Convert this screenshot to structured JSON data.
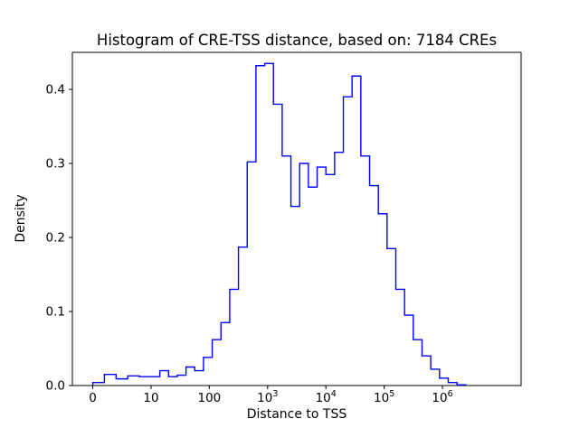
{
  "figure": {
    "background": "#ffffff"
  },
  "chart_data": {
    "type": "histogram",
    "title": "Histogram of CRE-TSS distance, based on: 7184 CREs",
    "xlabel": "Distance to TSS",
    "ylabel": "Density",
    "n_cres": 7184,
    "x_scale": "symlog",
    "line_color": "#0000ff",
    "spine_color": "#000000",
    "x_ticks": [
      {
        "value": 0,
        "label": "0"
      },
      {
        "value": 10,
        "label": "10"
      },
      {
        "value": 100,
        "label": "100"
      },
      {
        "value": 1000,
        "label": "10^3"
      },
      {
        "value": 10000,
        "label": "10^4"
      },
      {
        "value": 100000,
        "label": "10^5"
      },
      {
        "value": 1000000,
        "label": "10^6"
      }
    ],
    "y_ticks": [
      {
        "value": 0.0,
        "label": "0.0"
      },
      {
        "value": 0.1,
        "label": "0.1"
      },
      {
        "value": 0.2,
        "label": "0.2"
      },
      {
        "value": 0.3,
        "label": "0.3"
      },
      {
        "value": 0.4,
        "label": "0.4"
      }
    ],
    "ylim": [
      0,
      0.45
    ],
    "bins": {
      "linear": {
        "edges": [
          0,
          2,
          4,
          6,
          8,
          10
        ],
        "densities": [
          0.004,
          0.015,
          0.009,
          0.013,
          0.012
        ]
      },
      "log": {
        "start_exp": 1.0,
        "step_exp": 0.15,
        "densities": [
          0.012,
          0.02,
          0.012,
          0.014,
          0.025,
          0.02,
          0.038,
          0.062,
          0.085,
          0.13,
          0.187,
          0.302,
          0.432,
          0.435,
          0.38,
          0.31,
          0.242,
          0.3,
          0.268,
          0.295,
          0.285,
          0.315,
          0.39,
          0.418,
          0.31,
          0.27,
          0.232,
          0.185,
          0.13,
          0.095,
          0.062,
          0.04,
          0.022,
          0.01,
          0.004,
          0.001
        ]
      }
    }
  }
}
